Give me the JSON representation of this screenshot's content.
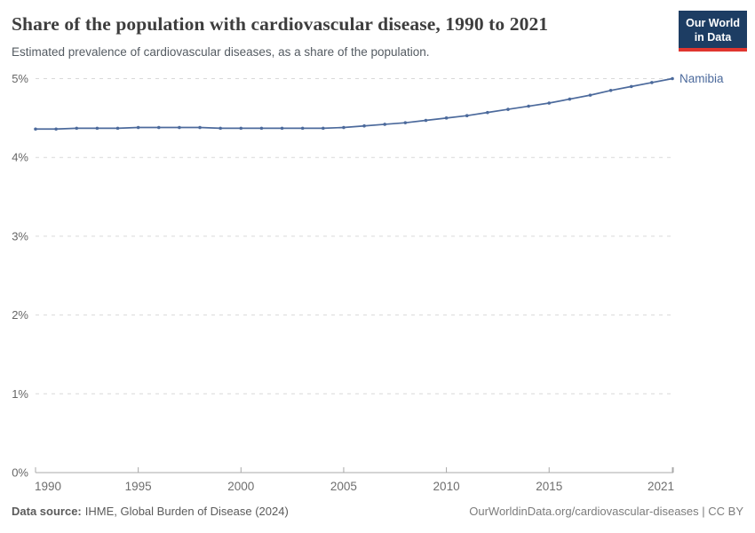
{
  "header": {
    "title": "Share of the population with cardiovascular disease, 1990 to 2021",
    "subtitle": "Estimated prevalence of cardiovascular diseases, as a share of the population.",
    "logo": {
      "line1": "Our World",
      "line2": "in Data",
      "bg_color": "#1d3d63",
      "accent_color": "#e0362f"
    }
  },
  "chart_data": {
    "type": "line",
    "title": "Share of the population with cardiovascular disease, 1990 to 2021",
    "subtitle": "Estimated prevalence of cardiovascular diseases, as a share of the population.",
    "x": [
      1990,
      1991,
      1992,
      1993,
      1994,
      1995,
      1996,
      1997,
      1998,
      1999,
      2000,
      2001,
      2002,
      2003,
      2004,
      2005,
      2006,
      2007,
      2008,
      2009,
      2010,
      2011,
      2012,
      2013,
      2014,
      2015,
      2016,
      2017,
      2018,
      2019,
      2020,
      2021
    ],
    "series": [
      {
        "name": "Namibia",
        "color": "#4C6A9C",
        "values": [
          4.36,
          4.36,
          4.37,
          4.37,
          4.37,
          4.38,
          4.38,
          4.38,
          4.38,
          4.37,
          4.37,
          4.37,
          4.37,
          4.37,
          4.37,
          4.38,
          4.4,
          4.42,
          4.44,
          4.47,
          4.5,
          4.53,
          4.57,
          4.61,
          4.65,
          4.69,
          4.74,
          4.79,
          4.85,
          4.9,
          4.95,
          5.0
        ]
      }
    ],
    "xticks": [
      1990,
      1995,
      2000,
      2005,
      2010,
      2015,
      2021
    ],
    "yticks": [
      "0%",
      "1%",
      "2%",
      "3%",
      "4%",
      "5%"
    ],
    "xlim": [
      1990,
      2021
    ],
    "ylim": [
      0,
      5
    ],
    "grid": "horizontal-dashed",
    "legend": "entity-label-at-line-end",
    "xlabel": "",
    "ylabel": ""
  },
  "footer": {
    "datasource_label": "Data source:",
    "datasource": "IHME, Global Burden of Disease (2024)",
    "credit": "OurWorldinData.org/cardiovascular-diseases | CC BY"
  },
  "colors": {
    "line": "#4C6A9C",
    "grid": "#d9d9d9",
    "axis": "#a8a8a8",
    "ytick_text": "#666666",
    "xtick_text": "#6e6e6e"
  }
}
